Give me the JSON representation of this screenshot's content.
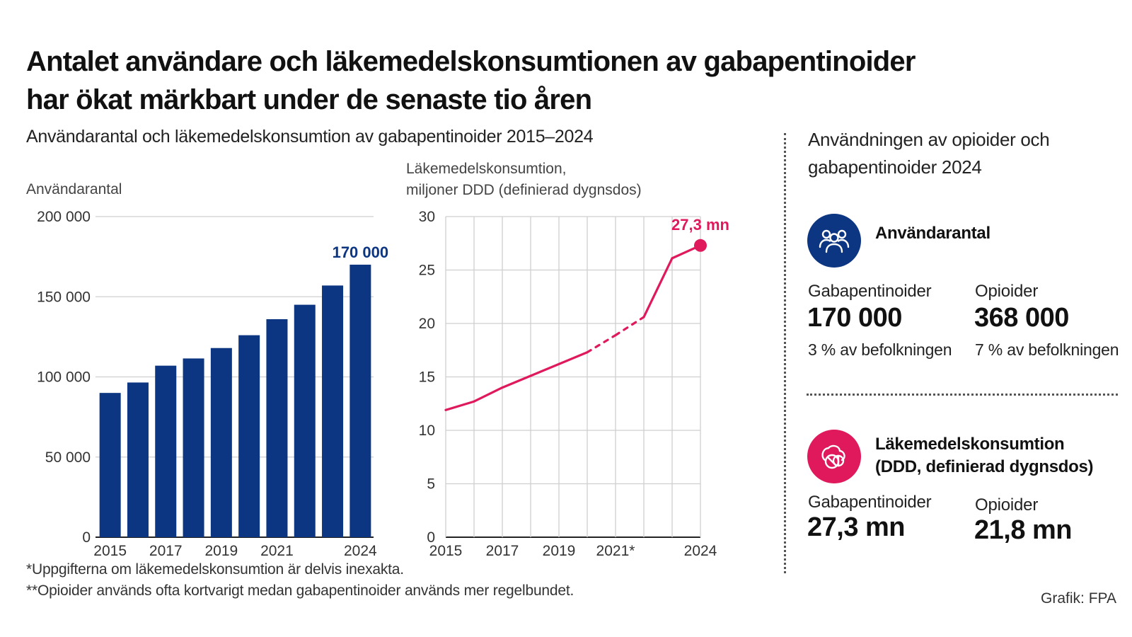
{
  "header": {
    "title_line1": "Antalet användare och läkemedelskonsumtionen av gabapentinoider",
    "title_line2": "har ökat märkbart under de senaste tio åren",
    "subtitle": "Användarantal och läkemedelskonsumtion av gabapentinoider 2015–2024"
  },
  "chart_data": [
    {
      "type": "bar",
      "ylabel": "Användarantal",
      "categories": [
        "2015",
        "2016",
        "2017",
        "2018",
        "2019",
        "2020",
        "2021",
        "2022",
        "2023",
        "2024"
      ],
      "tick_labels": [
        "2015",
        "",
        "2017",
        "",
        "2019",
        "",
        "2021",
        "",
        "",
        "2024"
      ],
      "values": [
        90000,
        96500,
        107000,
        111500,
        118000,
        126000,
        136000,
        145000,
        157000,
        170000
      ],
      "ylim": [
        0,
        200000
      ],
      "yticks": [
        0,
        50000,
        100000,
        150000,
        200000
      ],
      "ytick_labels": [
        "0",
        "50 000",
        "100 000",
        "150 000",
        "200 000"
      ],
      "highlight_label": "170 000",
      "color": "#0c3582",
      "grid": "horizontal"
    },
    {
      "type": "line",
      "ylabel_line1": "Läkemedelskonsumtion,",
      "ylabel_line2": "miljoner DDD (definierad dygnsdos)",
      "x": [
        "2015",
        "2016",
        "2017",
        "2018",
        "2019",
        "2020",
        "2021",
        "2022",
        "2023",
        "2024"
      ],
      "tick_labels": [
        "2015",
        "",
        "2017",
        "",
        "2019",
        "",
        "2021*",
        "",
        "",
        "2024"
      ],
      "values": [
        11.9,
        12.7,
        14.0,
        15.1,
        16.2,
        17.3,
        18.9,
        20.6,
        26.1,
        27.3
      ],
      "dashed_segments": [
        [
          5,
          7
        ]
      ],
      "ylim": [
        0,
        30
      ],
      "yticks": [
        0,
        5,
        10,
        15,
        20,
        25,
        30
      ],
      "ytick_labels": [
        "0",
        "5",
        "10",
        "15",
        "20",
        "25",
        "30"
      ],
      "highlight_label": "27,3 mn",
      "color": "#e0195d",
      "grid": "both"
    }
  ],
  "panel": {
    "title_line1": "Användningen av opioider och",
    "title_line2": "gabapentinoider 2024",
    "users": {
      "icon": "people-icon",
      "heading": "Användarantal",
      "gaba_label": "Gabapentinoider",
      "gaba_value": "170 000",
      "gaba_note": "3 % av befolkningen",
      "opio_label": "Opioider",
      "opio_value": "368 000",
      "opio_note": "7 % av befolkningen"
    },
    "consumption": {
      "icon": "pills-icon",
      "heading_line1": "Läkemedelskonsumtion",
      "heading_line2": "(DDD, definierad dygnsdos)",
      "gaba_label": "Gabapentinoider",
      "gaba_value": "27,3 mn",
      "opio_label": "Opioider",
      "opio_value": "21,8 mn"
    }
  },
  "footnotes": {
    "note1": "*Uppgifterna om läkemedelskonsumtion är delvis inexakta.",
    "note2": "**Opioider används ofta kortvarigt medan gabapentinoider används mer regelbundet.",
    "credit": "Grafik: FPA"
  },
  "colors": {
    "blue": "#0c3582",
    "pink": "#e0195d"
  }
}
